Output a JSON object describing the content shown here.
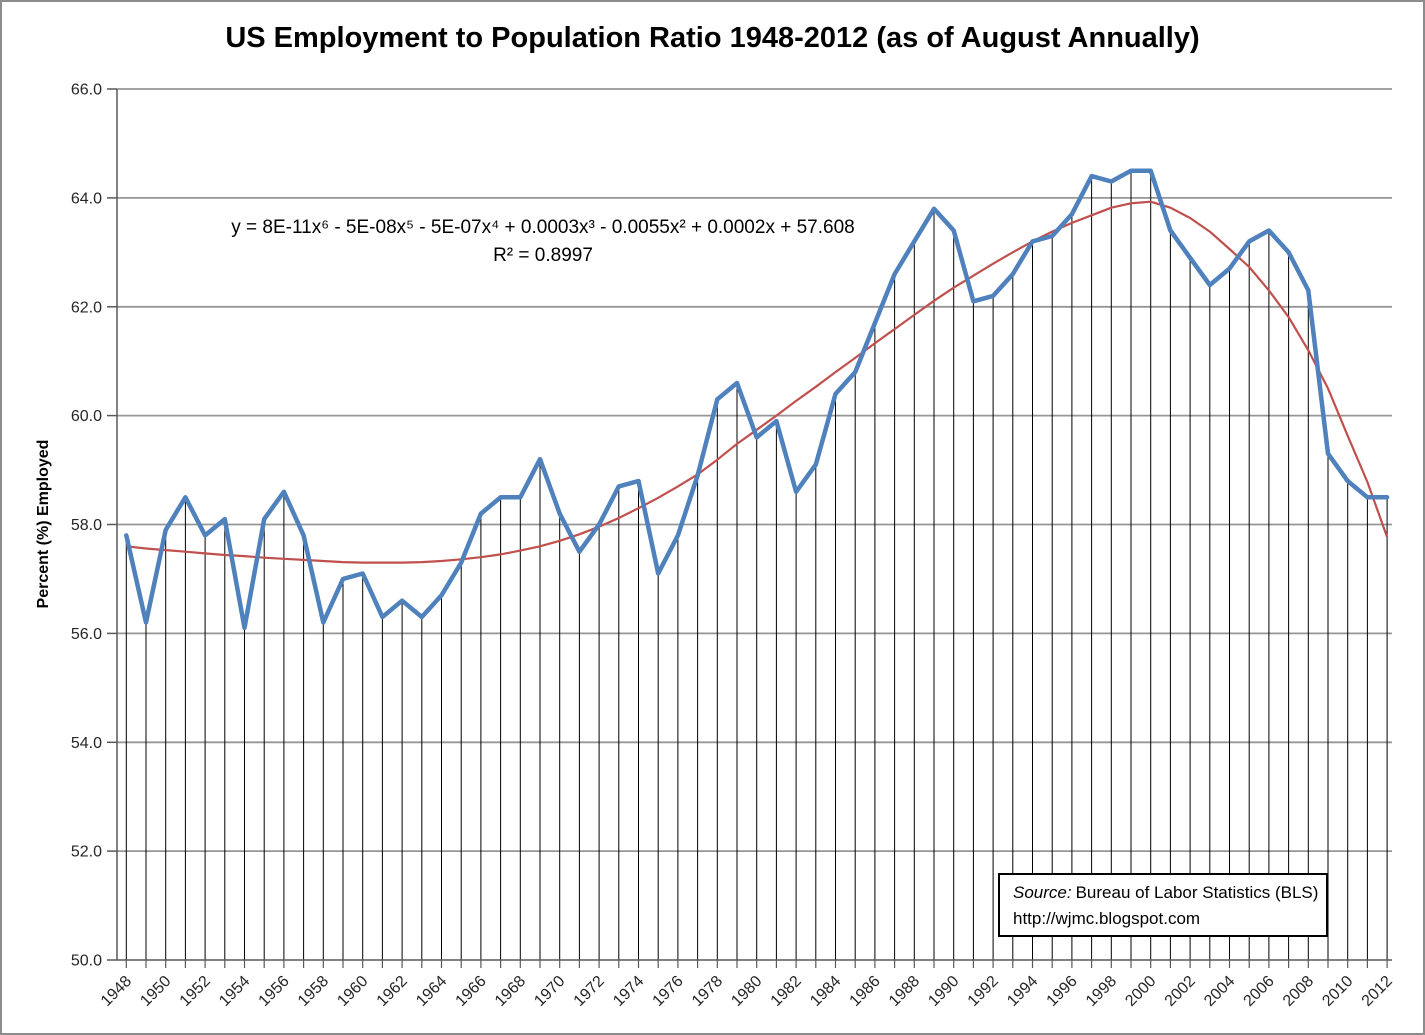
{
  "chart": {
    "title": "US Employment to Population Ratio 1948-2012 (as of August Annually)",
    "y_axis_title": "Percent (%) Employed"
  },
  "annotation": {
    "equation": "y = 8E-11x⁶ - 5E-08x⁵ - 5E-07x⁴ + 0.0003x³ - 0.0055x² + 0.0002x + 57.608",
    "r_squared": "R² = 0.8997"
  },
  "source_box": {
    "label": "Source:",
    "text": "Bureau of Labor Statistics (BLS)",
    "url": "http://wjmc.blogspot.com"
  },
  "colors": {
    "series": "#4F81BD",
    "trendline": "#C0504D",
    "gridline": "#969696",
    "dropline": "#000000",
    "axis": "#595959",
    "label_text": "#262626"
  },
  "chart_data": {
    "type": "line",
    "title": "US Employment to Population Ratio 1948-2012 (as of August Annually)",
    "xlabel": "",
    "ylabel": "Percent (%) Employed",
    "ylim": [
      50,
      66
    ],
    "ytick_step": 2,
    "ytick_labels": [
      "50.0",
      "52.0",
      "54.0",
      "56.0",
      "58.0",
      "60.0",
      "62.0",
      "64.0",
      "66.0"
    ],
    "x_label_every": 2,
    "grid": "horizontal",
    "droplines": true,
    "legend": "none",
    "x": [
      1948,
      1949,
      1950,
      1951,
      1952,
      1953,
      1954,
      1955,
      1956,
      1957,
      1958,
      1959,
      1960,
      1961,
      1962,
      1963,
      1964,
      1965,
      1966,
      1967,
      1968,
      1969,
      1970,
      1971,
      1972,
      1973,
      1974,
      1975,
      1976,
      1977,
      1978,
      1979,
      1980,
      1981,
      1982,
      1983,
      1984,
      1985,
      1986,
      1987,
      1988,
      1989,
      1990,
      1991,
      1992,
      1993,
      1994,
      1995,
      1996,
      1997,
      1998,
      1999,
      2000,
      2001,
      2002,
      2003,
      2004,
      2005,
      2006,
      2007,
      2008,
      2009,
      2010,
      2011,
      2012
    ],
    "series": [
      {
        "name": "Employment to Population Ratio (% employed, August)",
        "color": "#4F81BD",
        "values": [
          57.8,
          56.2,
          57.9,
          58.5,
          57.8,
          58.1,
          56.1,
          58.1,
          58.6,
          57.8,
          56.2,
          57.0,
          57.1,
          56.3,
          56.6,
          56.3,
          56.7,
          57.3,
          58.2,
          58.5,
          58.5,
          59.2,
          58.2,
          57.5,
          58.0,
          58.7,
          58.8,
          57.1,
          57.8,
          58.9,
          60.3,
          60.6,
          59.6,
          59.9,
          58.6,
          59.1,
          60.4,
          60.8,
          61.7,
          62.6,
          63.2,
          63.8,
          63.4,
          62.1,
          62.2,
          62.6,
          63.2,
          63.3,
          63.7,
          64.4,
          64.3,
          64.5,
          64.5,
          63.4,
          62.9,
          62.4,
          62.7,
          63.2,
          63.4,
          63.0,
          62.3,
          59.3,
          58.8,
          58.5,
          58.5
        ]
      },
      {
        "name": "6th-order polynomial trendline",
        "color": "#C0504D",
        "values": [
          57.6,
          57.56,
          57.53,
          57.5,
          57.47,
          57.44,
          57.42,
          57.39,
          57.37,
          57.35,
          57.33,
          57.31,
          57.3,
          57.3,
          57.3,
          57.31,
          57.33,
          57.36,
          57.4,
          57.45,
          57.52,
          57.6,
          57.7,
          57.82,
          57.96,
          58.12,
          58.3,
          58.49,
          58.7,
          58.92,
          59.19,
          59.48,
          59.74,
          60.0,
          60.27,
          60.53,
          60.8,
          61.06,
          61.33,
          61.59,
          61.85,
          62.11,
          62.35,
          62.57,
          62.79,
          63.0,
          63.2,
          63.38,
          63.54,
          63.68,
          63.82,
          63.9,
          63.93,
          63.82,
          63.63,
          63.38,
          63.06,
          62.73,
          62.3,
          61.81,
          61.2,
          60.5,
          59.63,
          58.78,
          57.77
        ]
      }
    ]
  }
}
